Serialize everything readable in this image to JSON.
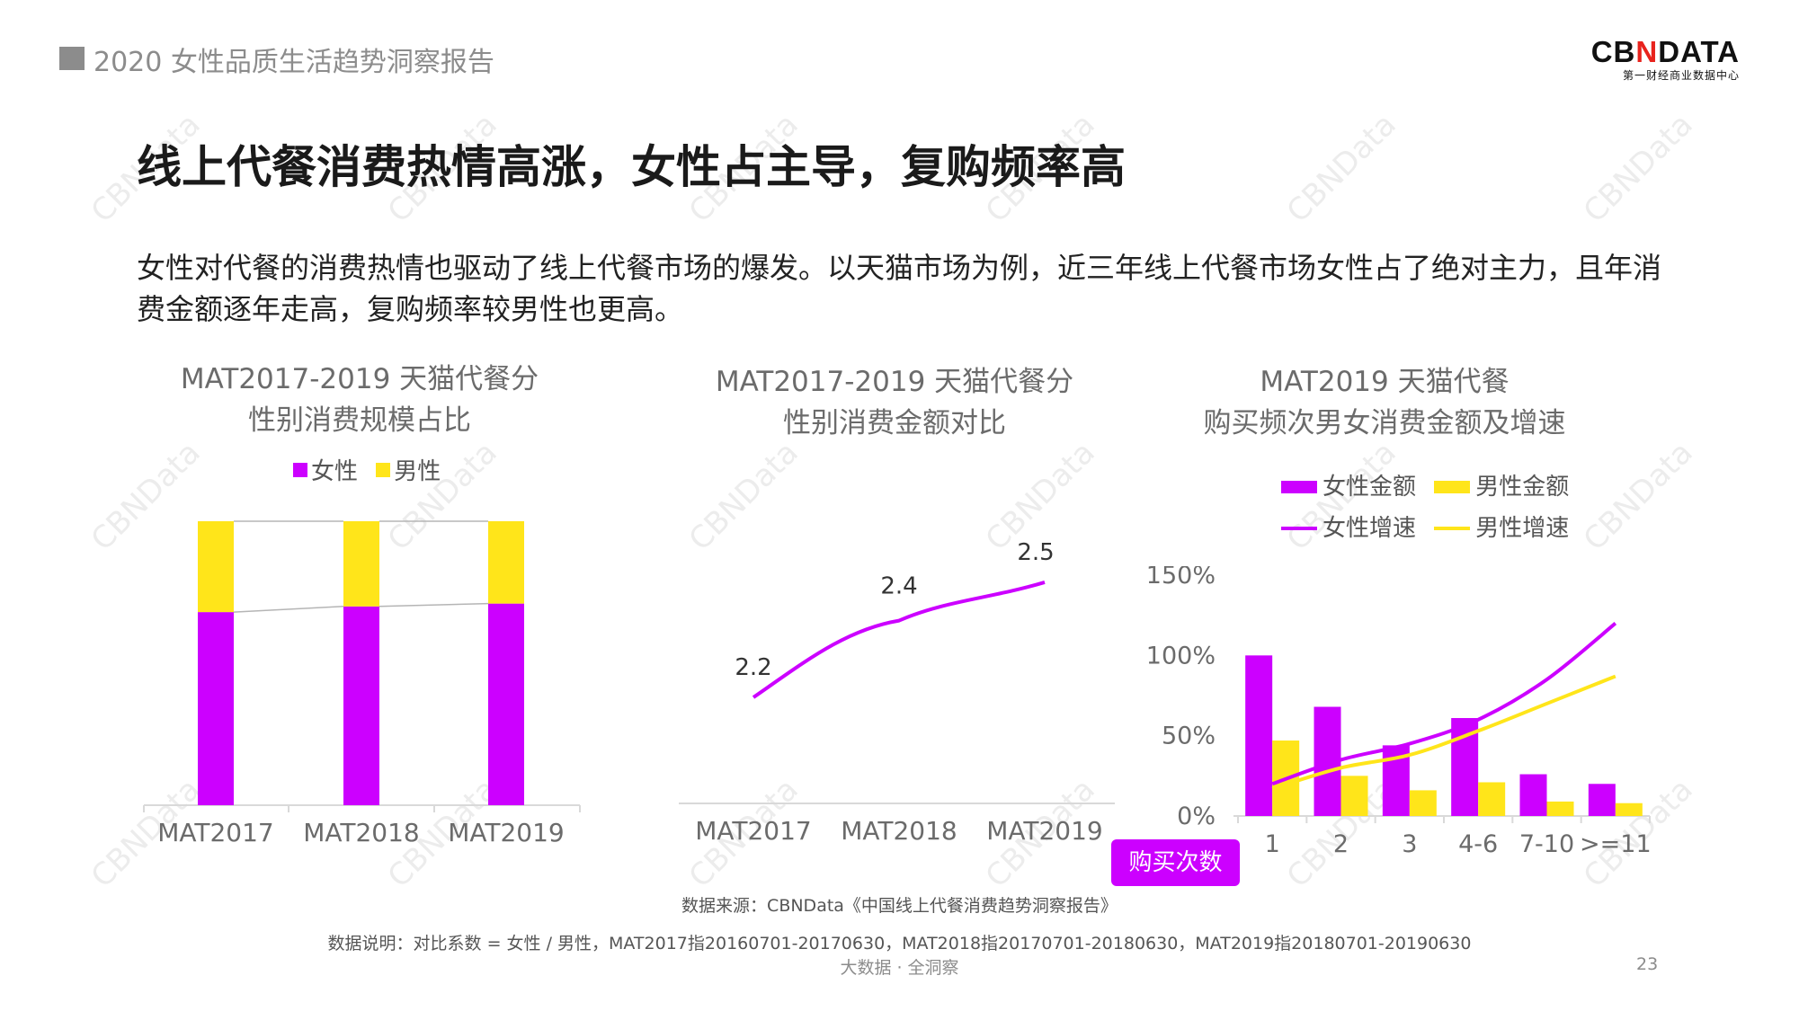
{
  "header": {
    "report_title": "2020 女性品质生活趋势洞察报告",
    "logo_prefix": "CB",
    "logo_mark": "N",
    "logo_suffix": "DATA",
    "logo_tagline": "第一财经商业数据中心"
  },
  "slide": {
    "title": "线上代餐消费热情高涨，女性占主导，复购频率高",
    "description": "女性对代餐的消费热情也驱动了线上代餐市场的爆发。以天猫市场为例，近三年线上代餐市场女性占了绝对主力，且年消费金额逐年走高，复购频率较男性也更高。"
  },
  "watermark": "CBNData",
  "colors": {
    "female": "#cc00ff",
    "male": "#ffe51a",
    "axis": "#d9d9d9",
    "text": "#555555"
  },
  "chart_data": [
    {
      "type": "bar",
      "stacked": true,
      "title_line1": "MAT2017-2019 天猫代餐分",
      "title_line2": "性别消费规模占比",
      "categories": [
        "MAT2017",
        "MAT2018",
        "MAT2019"
      ],
      "series": [
        {
          "name": "女性",
          "values": [
            68,
            70,
            71
          ]
        },
        {
          "name": "男性",
          "values": [
            32,
            30,
            29
          ]
        }
      ],
      "ylim": [
        0,
        100
      ],
      "legend": "top"
    },
    {
      "type": "line",
      "title_line1": "MAT2017-2019 天猫代餐分",
      "title_line2": "性别消费金额对比",
      "categories": [
        "MAT2017",
        "MAT2018",
        "MAT2019"
      ],
      "values": [
        2.2,
        2.4,
        2.5
      ],
      "data_labels": [
        "2.2",
        "2.4",
        "2.5"
      ]
    },
    {
      "type": "bar",
      "title_line1": "MAT2019 天猫代餐",
      "title_line2": "购买频次男女消费金额及增速",
      "xlabel": "购买次数",
      "categories": [
        "1",
        "2",
        "3",
        "4-6",
        "7-10",
        ">=11"
      ],
      "bar_series": [
        {
          "name": "女性金额",
          "values": [
            100,
            68,
            44,
            61,
            26,
            20
          ]
        },
        {
          "name": "男性金额",
          "values": [
            47,
            25,
            16,
            21,
            9,
            8
          ]
        }
      ],
      "line_series": [
        {
          "name": "女性增速",
          "values": [
            20,
            35,
            45,
            60,
            85,
            120
          ]
        },
        {
          "name": "男性增速",
          "values": [
            17,
            30,
            38,
            53,
            70,
            87
          ]
        }
      ],
      "y_axis_ticks": [
        "150%",
        "100%",
        "50%",
        "0%"
      ],
      "ylim": [
        0,
        150
      ]
    }
  ],
  "footer": {
    "source": "数据来源：CBNData《中国线上代餐消费趋势洞察报告》",
    "note": "数据说明：对比系数 = 女性 / 男性，MAT2017指20160701-20170630，MAT2018指20170701-20180630，MAT2019指20180701-20190630",
    "slogan": "大数据 · 全洞察",
    "page_number": "23"
  }
}
